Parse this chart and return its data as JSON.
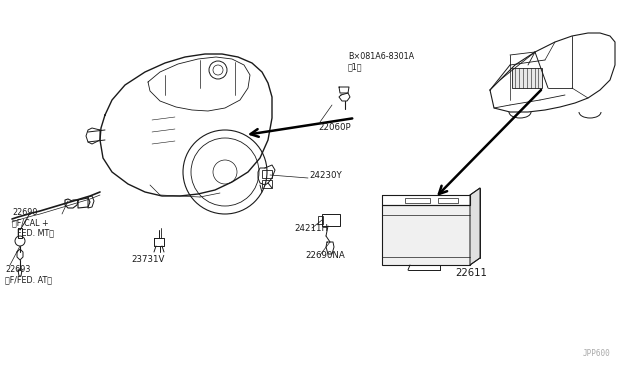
{
  "bg_color": "#ffffff",
  "line_color": "#1a1a1a",
  "fig_width": 6.4,
  "fig_height": 3.72,
  "dpi": 100,
  "watermark": "JPP600",
  "parts": {
    "bolt_label": "B×081A6-8301A\n（1）",
    "part_22060P": "22060P",
    "part_24230Y": "24230Y",
    "part_24211H": "24211H",
    "part_22690NA": "22690NA",
    "part_22690": "22690\n＜F/CAL +\n  FED. MT＞",
    "part_22693": "22693\n＜F/FED. AT＞",
    "part_23731V": "23731V",
    "part_22611": "22611"
  }
}
